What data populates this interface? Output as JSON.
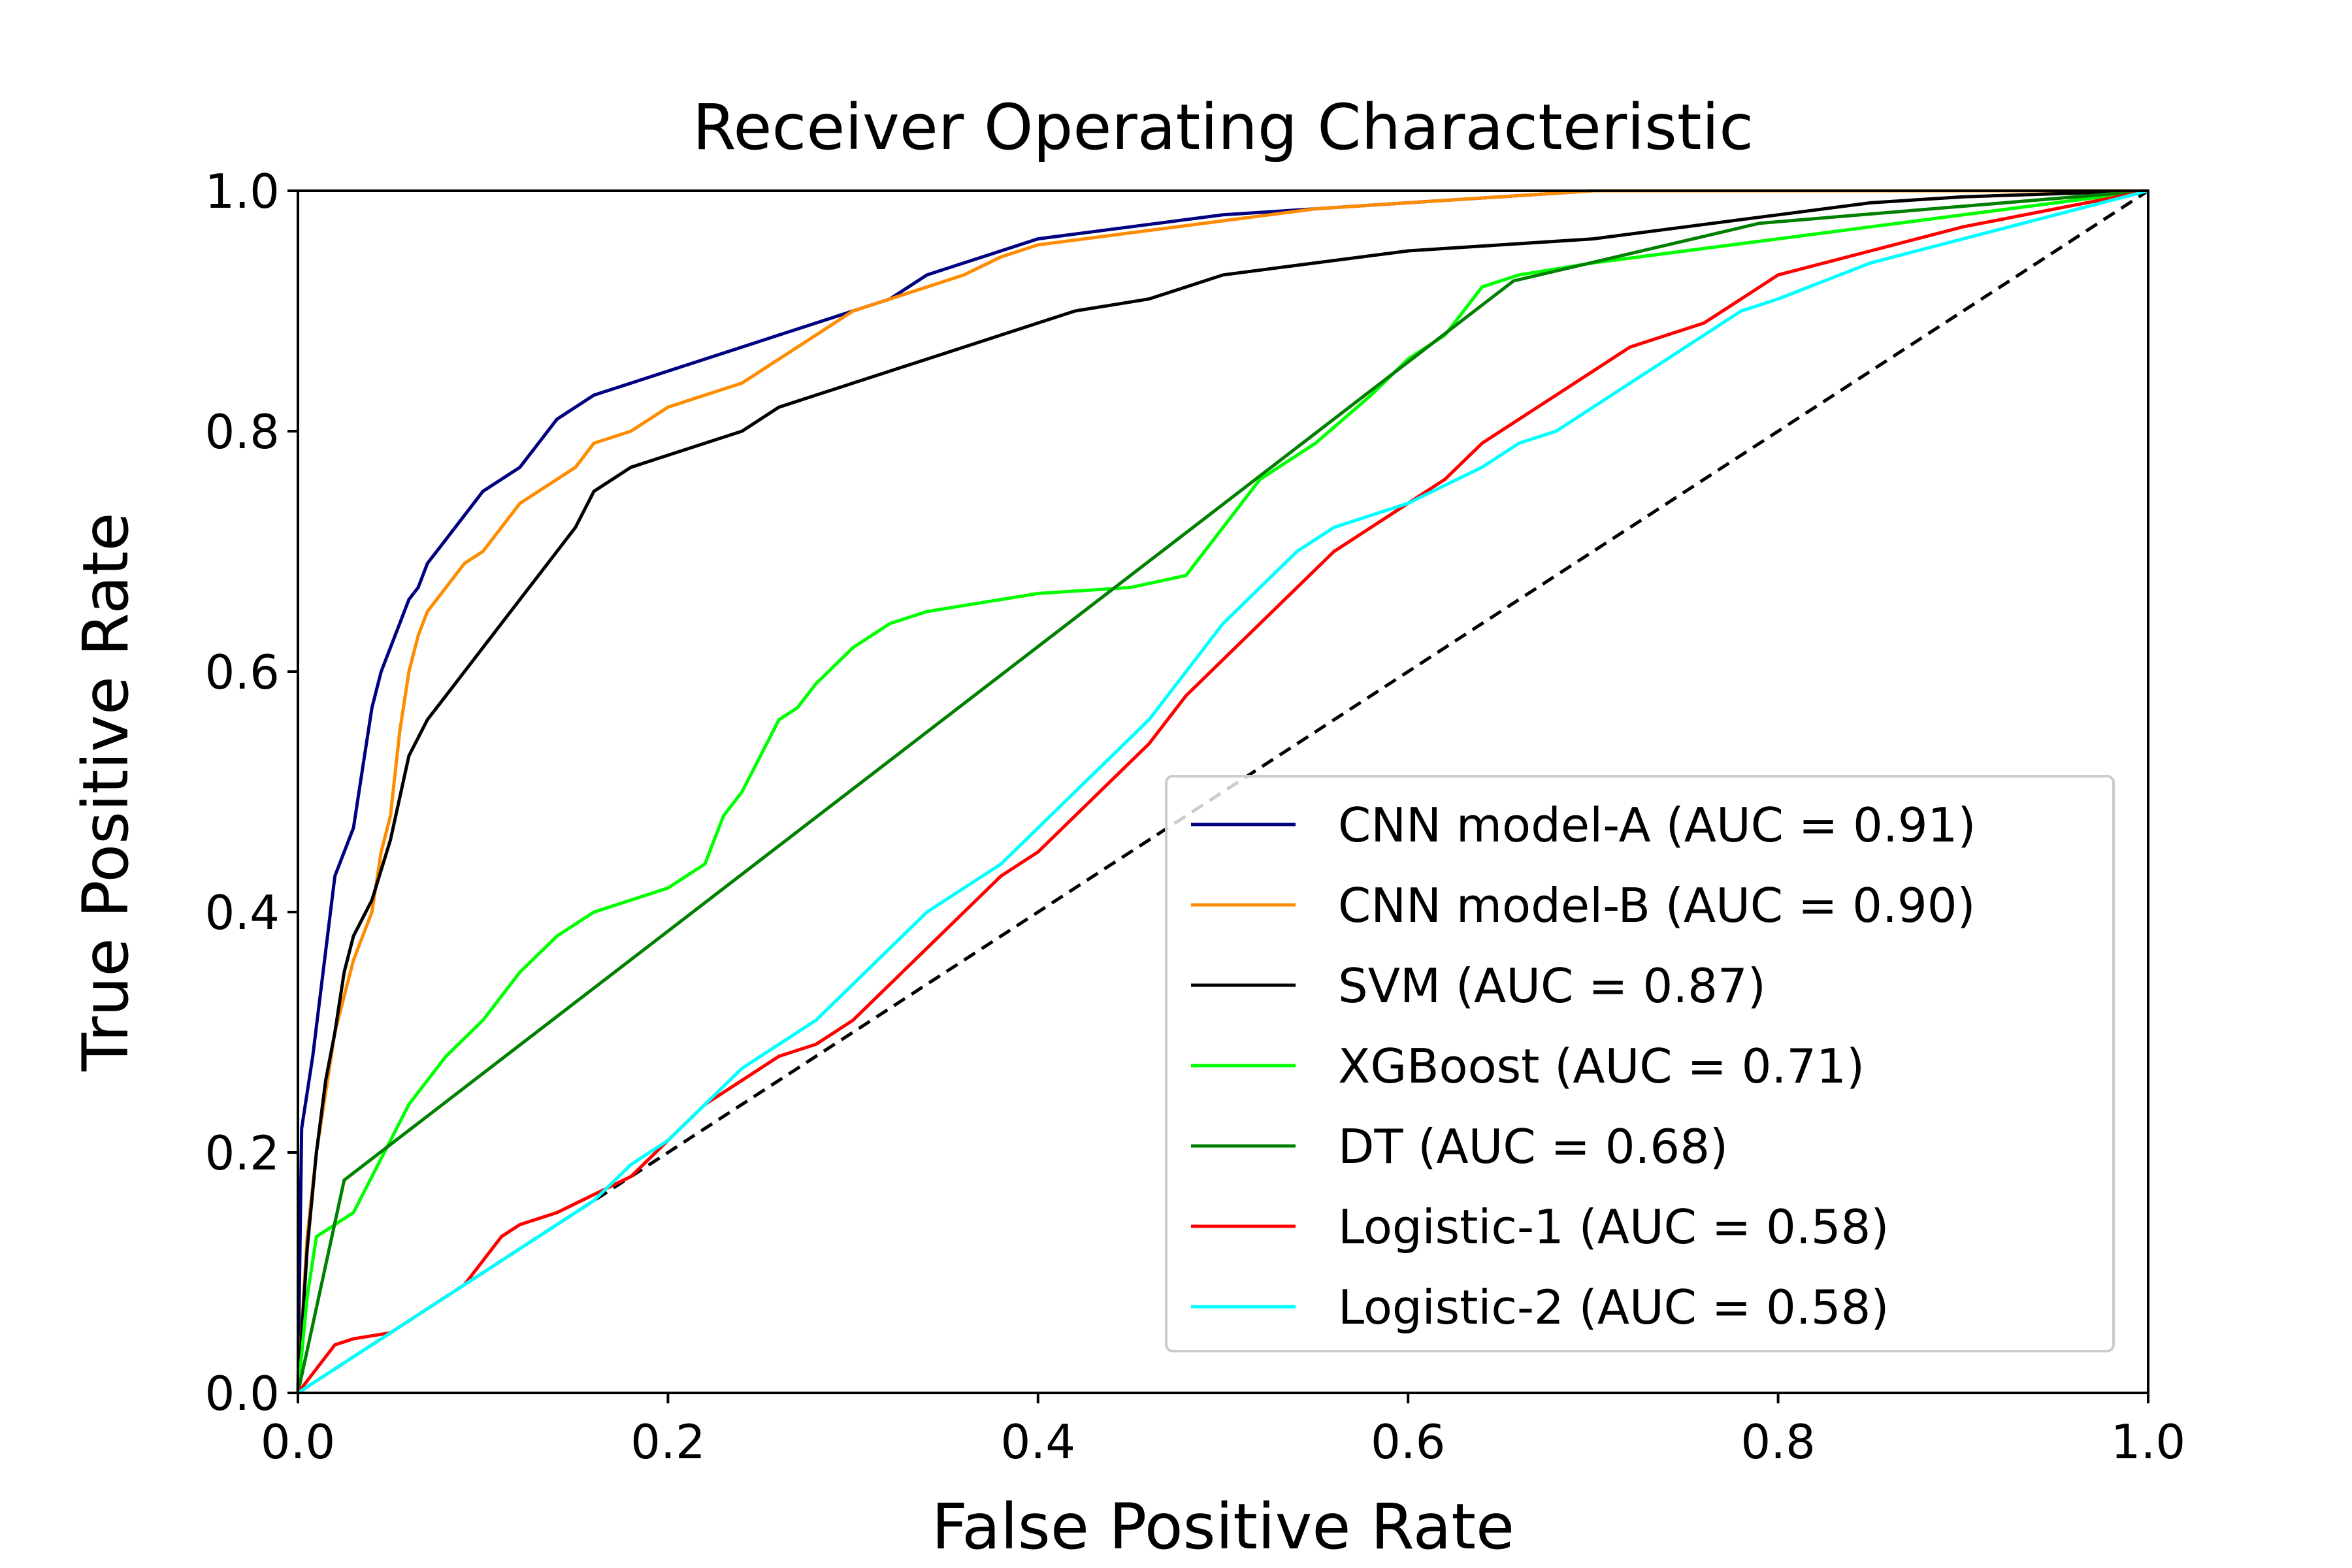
{
  "chart_data": {
    "type": "line",
    "title": "Receiver Operating Characteristic",
    "xlabel": "False Positive Rate",
    "ylabel": "True Positive Rate",
    "xlim": [
      0.0,
      1.0
    ],
    "ylim": [
      0.0,
      1.0
    ],
    "xticks": [
      "0.0",
      "0.2",
      "0.4",
      "0.6",
      "0.8",
      "1.0"
    ],
    "yticks": [
      "0.0",
      "0.2",
      "0.4",
      "0.6",
      "0.8",
      "1.0"
    ],
    "grid": false,
    "legend_position": "lower-right",
    "reference_line": {
      "x": [
        0.0,
        1.0
      ],
      "y": [
        0.0,
        1.0
      ],
      "color": "#000000",
      "style": "dashed"
    },
    "series": [
      {
        "name": "CNN model-A (AUC = 0.91)",
        "color": "#000080",
        "x": [
          0.0,
          0.002,
          0.005,
          0.008,
          0.012,
          0.016,
          0.02,
          0.025,
          0.03,
          0.035,
          0.04,
          0.045,
          0.05,
          0.055,
          0.06,
          0.065,
          0.07,
          0.08,
          0.09,
          0.1,
          0.11,
          0.12,
          0.13,
          0.14,
          0.15,
          0.16,
          0.18,
          0.2,
          0.22,
          0.24,
          0.26,
          0.28,
          0.3,
          0.32,
          0.34,
          0.36,
          0.38,
          0.4,
          0.45,
          0.5,
          0.55,
          0.6,
          0.65,
          0.7,
          0.8,
          0.9,
          1.0
        ],
        "y": [
          0.0,
          0.22,
          0.25,
          0.28,
          0.33,
          0.38,
          0.43,
          0.45,
          0.47,
          0.52,
          0.57,
          0.6,
          0.62,
          0.64,
          0.66,
          0.67,
          0.69,
          0.71,
          0.73,
          0.75,
          0.76,
          0.77,
          0.79,
          0.81,
          0.82,
          0.83,
          0.84,
          0.85,
          0.86,
          0.87,
          0.88,
          0.89,
          0.9,
          0.91,
          0.93,
          0.94,
          0.95,
          0.96,
          0.97,
          0.98,
          0.985,
          0.99,
          0.995,
          1.0,
          1.0,
          1.0,
          1.0
        ]
      },
      {
        "name": "CNN model-B (AUC = 0.90)",
        "color": "#ff8c00",
        "x": [
          0.0,
          0.005,
          0.01,
          0.015,
          0.02,
          0.025,
          0.03,
          0.035,
          0.04,
          0.045,
          0.05,
          0.055,
          0.06,
          0.065,
          0.07,
          0.08,
          0.09,
          0.1,
          0.11,
          0.12,
          0.13,
          0.14,
          0.15,
          0.16,
          0.18,
          0.2,
          0.22,
          0.24,
          0.26,
          0.28,
          0.3,
          0.32,
          0.34,
          0.36,
          0.38,
          0.4,
          0.45,
          0.5,
          0.55,
          0.6,
          0.65,
          0.7,
          0.8,
          0.9,
          1.0
        ],
        "y": [
          0.0,
          0.13,
          0.2,
          0.25,
          0.3,
          0.33,
          0.36,
          0.38,
          0.4,
          0.45,
          0.48,
          0.55,
          0.6,
          0.63,
          0.65,
          0.67,
          0.69,
          0.7,
          0.72,
          0.74,
          0.75,
          0.76,
          0.77,
          0.79,
          0.8,
          0.82,
          0.83,
          0.84,
          0.86,
          0.88,
          0.9,
          0.91,
          0.92,
          0.93,
          0.945,
          0.955,
          0.965,
          0.975,
          0.985,
          0.99,
          0.995,
          1.0,
          1.0,
          1.0,
          1.0
        ]
      },
      {
        "name": "SVM (AUC = 0.87)",
        "color": "#000000",
        "x": [
          0.0,
          0.005,
          0.01,
          0.015,
          0.02,
          0.025,
          0.03,
          0.04,
          0.05,
          0.06,
          0.07,
          0.08,
          0.09,
          0.1,
          0.11,
          0.12,
          0.13,
          0.14,
          0.15,
          0.16,
          0.18,
          0.2,
          0.22,
          0.24,
          0.26,
          0.28,
          0.3,
          0.32,
          0.34,
          0.36,
          0.38,
          0.4,
          0.42,
          0.44,
          0.46,
          0.48,
          0.5,
          0.55,
          0.6,
          0.7,
          0.75,
          0.8,
          0.85,
          0.9,
          1.0
        ],
        "y": [
          0.0,
          0.12,
          0.2,
          0.26,
          0.3,
          0.35,
          0.38,
          0.41,
          0.46,
          0.53,
          0.56,
          0.58,
          0.6,
          0.62,
          0.64,
          0.66,
          0.68,
          0.7,
          0.72,
          0.75,
          0.77,
          0.78,
          0.79,
          0.8,
          0.82,
          0.83,
          0.84,
          0.85,
          0.86,
          0.87,
          0.88,
          0.89,
          0.9,
          0.905,
          0.91,
          0.92,
          0.93,
          0.94,
          0.95,
          0.96,
          0.97,
          0.98,
          0.99,
          0.995,
          1.0
        ]
      },
      {
        "name": "XGBoost (AUC = 0.71)",
        "color": "#00ff00",
        "x": [
          0.0,
          0.005,
          0.01,
          0.02,
          0.03,
          0.04,
          0.05,
          0.06,
          0.07,
          0.08,
          0.1,
          0.12,
          0.14,
          0.16,
          0.18,
          0.2,
          0.22,
          0.23,
          0.24,
          0.25,
          0.26,
          0.27,
          0.28,
          0.3,
          0.32,
          0.34,
          0.36,
          0.38,
          0.4,
          0.45,
          0.48,
          0.5,
          0.52,
          0.55,
          0.58,
          0.6,
          0.62,
          0.64,
          0.66,
          0.7,
          0.75,
          0.8,
          0.85,
          0.9,
          1.0
        ],
        "y": [
          0.0,
          0.08,
          0.13,
          0.14,
          0.15,
          0.18,
          0.21,
          0.24,
          0.26,
          0.28,
          0.31,
          0.35,
          0.38,
          0.4,
          0.41,
          0.42,
          0.44,
          0.48,
          0.5,
          0.53,
          0.56,
          0.57,
          0.59,
          0.62,
          0.64,
          0.65,
          0.655,
          0.66,
          0.665,
          0.67,
          0.68,
          0.72,
          0.76,
          0.79,
          0.83,
          0.86,
          0.88,
          0.92,
          0.93,
          0.94,
          0.95,
          0.96,
          0.97,
          0.98,
          1.0
        ]
      },
      {
        "name": "DT (AUC = 0.68)",
        "color": "#008000",
        "x": [
          0.0,
          0.025,
          0.657,
          0.79,
          1.0
        ],
        "y": [
          0.0,
          0.177,
          0.925,
          0.973,
          1.0
        ]
      },
      {
        "name": "Logistic-1 (AUC = 0.58)",
        "color": "#ff0000",
        "x": [
          0.0,
          0.02,
          0.03,
          0.05,
          0.07,
          0.09,
          0.1,
          0.11,
          0.12,
          0.14,
          0.16,
          0.18,
          0.2,
          0.22,
          0.24,
          0.26,
          0.28,
          0.3,
          0.32,
          0.34,
          0.36,
          0.38,
          0.4,
          0.42,
          0.44,
          0.46,
          0.48,
          0.5,
          0.52,
          0.54,
          0.56,
          0.58,
          0.6,
          0.62,
          0.64,
          0.66,
          0.68,
          0.7,
          0.72,
          0.74,
          0.76,
          0.78,
          0.8,
          0.85,
          0.9,
          0.95,
          1.0
        ],
        "y": [
          0.0,
          0.04,
          0.045,
          0.05,
          0.07,
          0.09,
          0.11,
          0.13,
          0.14,
          0.15,
          0.165,
          0.18,
          0.21,
          0.24,
          0.26,
          0.28,
          0.29,
          0.31,
          0.34,
          0.37,
          0.4,
          0.43,
          0.45,
          0.48,
          0.51,
          0.54,
          0.58,
          0.61,
          0.64,
          0.67,
          0.7,
          0.72,
          0.74,
          0.76,
          0.79,
          0.81,
          0.83,
          0.85,
          0.87,
          0.88,
          0.89,
          0.91,
          0.93,
          0.95,
          0.97,
          0.985,
          1.0
        ]
      },
      {
        "name": "Logistic-2 (AUC = 0.58)",
        "color": "#00ffff",
        "x": [
          0.0,
          0.02,
          0.04,
          0.06,
          0.08,
          0.1,
          0.12,
          0.14,
          0.16,
          0.18,
          0.2,
          0.22,
          0.24,
          0.26,
          0.28,
          0.3,
          0.32,
          0.34,
          0.36,
          0.38,
          0.4,
          0.42,
          0.44,
          0.46,
          0.48,
          0.5,
          0.52,
          0.54,
          0.56,
          0.58,
          0.6,
          0.62,
          0.64,
          0.66,
          0.68,
          0.7,
          0.72,
          0.74,
          0.76,
          0.78,
          0.8,
          0.85,
          0.9,
          0.95,
          1.0
        ],
        "y": [
          0.0,
          0.02,
          0.04,
          0.06,
          0.08,
          0.1,
          0.12,
          0.14,
          0.16,
          0.19,
          0.21,
          0.24,
          0.27,
          0.29,
          0.31,
          0.34,
          0.37,
          0.4,
          0.42,
          0.44,
          0.47,
          0.5,
          0.53,
          0.56,
          0.6,
          0.64,
          0.67,
          0.7,
          0.72,
          0.73,
          0.74,
          0.755,
          0.77,
          0.79,
          0.8,
          0.82,
          0.84,
          0.86,
          0.88,
          0.9,
          0.91,
          0.94,
          0.96,
          0.98,
          1.0
        ]
      }
    ]
  }
}
